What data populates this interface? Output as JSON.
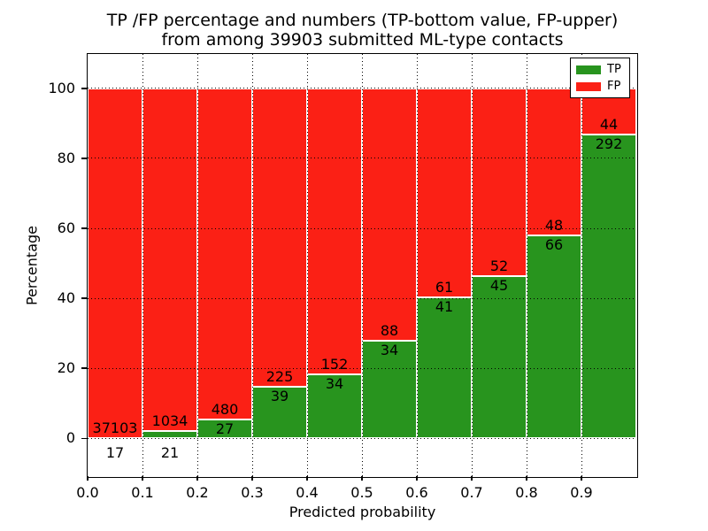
{
  "chart_data": {
    "type": "bar",
    "stacked": true,
    "title_lines": [
      "TP /FP percentage and numbers (TP-bottom value, FP-upper)",
      "from among 39903 submitted ML-type contacts"
    ],
    "title": "TP /FP percentage and numbers (TP-bottom value, FP-upper) from among 39903 submitted ML-type contacts",
    "xlabel": "Predicted probability",
    "ylabel": "Percentage",
    "total_submitted_contacts": 39903,
    "bin_width": 0.1,
    "xlim": [
      0.0,
      1.0
    ],
    "ylim": [
      -10,
      110
    ],
    "x_tick_labels": [
      "0.0",
      "0.1",
      "0.2",
      "0.3",
      "0.4",
      "0.5",
      "0.6",
      "0.7",
      "0.8",
      "0.9"
    ],
    "y_ticks": [
      0,
      20,
      40,
      60,
      80,
      100
    ],
    "grid": {
      "style": "dotted",
      "color": "#000000",
      "above_bars": true
    },
    "bar_edge_color": "#ffffff",
    "background": "#ffffff",
    "series": [
      {
        "name": "TP",
        "color": "#28941e",
        "counts": [
          17,
          21,
          27,
          39,
          34,
          34,
          41,
          45,
          66,
          292
        ],
        "percent": [
          0.05,
          1.99,
          5.33,
          14.77,
          18.28,
          27.87,
          40.2,
          46.39,
          57.89,
          86.9
        ]
      },
      {
        "name": "FP",
        "color": "#fb2015",
        "counts": [
          37103,
          1034,
          480,
          225,
          152,
          88,
          61,
          52,
          48,
          44
        ],
        "percent": [
          99.95,
          98.01,
          94.67,
          85.23,
          81.72,
          72.13,
          59.8,
          53.61,
          42.11,
          13.1
        ]
      }
    ],
    "legend": {
      "position": "upper right",
      "entries": [
        {
          "label": "TP",
          "color": "#28941e"
        },
        {
          "label": "FP",
          "color": "#fb2015"
        }
      ]
    }
  }
}
